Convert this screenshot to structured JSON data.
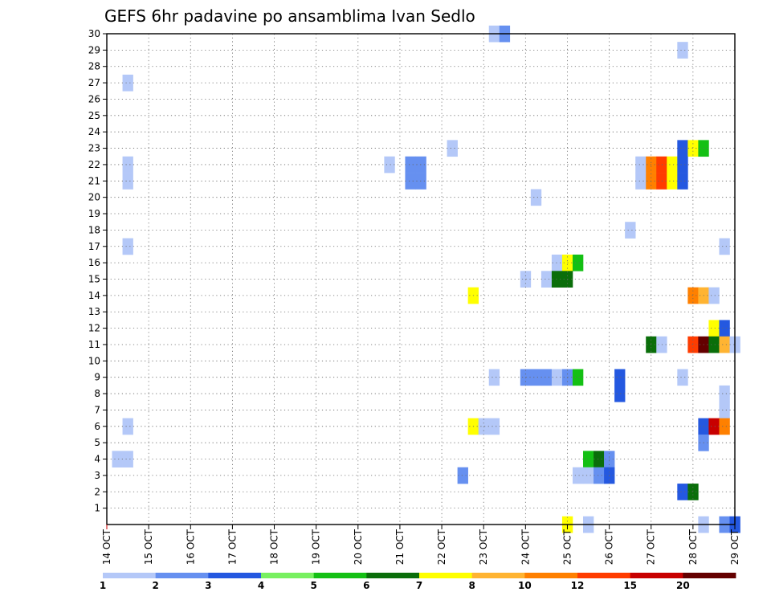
{
  "chart_data": {
    "type": "heatmap",
    "title": "GEFS 6hr padavine po ansamblima Ivan Sedlo",
    "x_ticks": [
      "14 OCT",
      "15 OCT",
      "16 OCT",
      "17 OCT",
      "18 OCT",
      "19 OCT",
      "20 OCT",
      "21 OCT",
      "22 OCT",
      "23 OCT",
      "24 OCT",
      "25 OCT",
      "26 OCT",
      "27 OCT",
      "28 OCT",
      "29 OCT"
    ],
    "x_unit": "days from 14 OCT (1 day = 4 six-hour steps)",
    "xlim": [
      0,
      15
    ],
    "y_ticks": [
      "1",
      "2",
      "3",
      "4",
      "5",
      "6",
      "7",
      "8",
      "9",
      "10",
      "11",
      "12",
      "13",
      "14",
      "15",
      "16",
      "17",
      "18",
      "19",
      "20",
      "21",
      "22",
      "23",
      "24",
      "25",
      "26",
      "27",
      "28",
      "29",
      "30"
    ],
    "ylim": [
      0,
      30
    ],
    "grid": true,
    "colorbar": {
      "labels": [
        "1",
        "2",
        "3",
        "4",
        "5",
        "6",
        "7",
        "8",
        "10",
        "12",
        "15",
        "20"
      ],
      "colors": [
        "#b4c8f8",
        "#6690f0",
        "#2458e0",
        "#78f060",
        "#14c014",
        "#0a6e0a",
        "#ffff00",
        "#ffb432",
        "#ff8000",
        "#ff3c00",
        "#c80000",
        "#640000"
      ]
    },
    "cells": [
      {
        "x": 9.25,
        "y": 30,
        "v": 1
      },
      {
        "x": 9.5,
        "y": 30,
        "v": 2
      },
      {
        "x": 13.75,
        "y": 29,
        "v": 1
      },
      {
        "x": 0.5,
        "y": 27,
        "v": 1
      },
      {
        "x": 8.25,
        "y": 23,
        "v": 1
      },
      {
        "x": 13.75,
        "y": 23,
        "v": 3
      },
      {
        "x": 14,
        "y": 23,
        "v": 7
      },
      {
        "x": 14.25,
        "y": 23,
        "v": 5
      },
      {
        "x": 0.5,
        "y": 22,
        "v": 1
      },
      {
        "x": 6.75,
        "y": 22,
        "v": 1
      },
      {
        "x": 7.25,
        "y": 22,
        "v": 2
      },
      {
        "x": 7.5,
        "y": 22,
        "v": 2
      },
      {
        "x": 12.75,
        "y": 22,
        "v": 1
      },
      {
        "x": 13,
        "y": 22,
        "v": 10
      },
      {
        "x": 13.25,
        "y": 22,
        "v": 12
      },
      {
        "x": 13.5,
        "y": 22,
        "v": 7
      },
      {
        "x": 13.75,
        "y": 22,
        "v": 3
      },
      {
        "x": 0.5,
        "y": 21,
        "v": 1
      },
      {
        "x": 7.25,
        "y": 21,
        "v": 2
      },
      {
        "x": 7.5,
        "y": 21,
        "v": 2
      },
      {
        "x": 12.75,
        "y": 21,
        "v": 1
      },
      {
        "x": 13,
        "y": 21,
        "v": 10
      },
      {
        "x": 13.25,
        "y": 21,
        "v": 12
      },
      {
        "x": 13.5,
        "y": 21,
        "v": 7
      },
      {
        "x": 13.75,
        "y": 21,
        "v": 3
      },
      {
        "x": 10.25,
        "y": 20,
        "v": 1
      },
      {
        "x": 12.5,
        "y": 18,
        "v": 1
      },
      {
        "x": 0.5,
        "y": 17,
        "v": 1
      },
      {
        "x": 14.75,
        "y": 17,
        "v": 1
      },
      {
        "x": 10.75,
        "y": 16,
        "v": 1
      },
      {
        "x": 11,
        "y": 16,
        "v": 7
      },
      {
        "x": 11.25,
        "y": 16,
        "v": 5
      },
      {
        "x": 10,
        "y": 15,
        "v": 1
      },
      {
        "x": 10.5,
        "y": 15,
        "v": 1
      },
      {
        "x": 10.75,
        "y": 15,
        "v": 6
      },
      {
        "x": 11,
        "y": 15,
        "v": 6
      },
      {
        "x": 8.75,
        "y": 14,
        "v": 7
      },
      {
        "x": 14,
        "y": 14,
        "v": 10
      },
      {
        "x": 14.25,
        "y": 14,
        "v": 8
      },
      {
        "x": 14.5,
        "y": 14,
        "v": 1
      },
      {
        "x": 14.5,
        "y": 12,
        "v": 7
      },
      {
        "x": 14.75,
        "y": 12,
        "v": 3
      },
      {
        "x": 13,
        "y": 11,
        "v": 6
      },
      {
        "x": 13.25,
        "y": 11,
        "v": 1
      },
      {
        "x": 14,
        "y": 11,
        "v": 12
      },
      {
        "x": 14.25,
        "y": 11,
        "v": 20
      },
      {
        "x": 14.5,
        "y": 11,
        "v": 6
      },
      {
        "x": 14.75,
        "y": 11,
        "v": 8
      },
      {
        "x": 15,
        "y": 11,
        "v": 1
      },
      {
        "x": 9.25,
        "y": 9,
        "v": 1
      },
      {
        "x": 10,
        "y": 9,
        "v": 2
      },
      {
        "x": 10.25,
        "y": 9,
        "v": 2
      },
      {
        "x": 10.5,
        "y": 9,
        "v": 2
      },
      {
        "x": 10.75,
        "y": 9,
        "v": 1
      },
      {
        "x": 11,
        "y": 9,
        "v": 2
      },
      {
        "x": 11.25,
        "y": 9,
        "v": 5
      },
      {
        "x": 12.25,
        "y": 9,
        "v": 3
      },
      {
        "x": 13.75,
        "y": 9,
        "v": 1
      },
      {
        "x": 12.25,
        "y": 8,
        "v": 3
      },
      {
        "x": 14.75,
        "y": 8,
        "v": 1
      },
      {
        "x": 14.75,
        "y": 7,
        "v": 1
      },
      {
        "x": 0.5,
        "y": 6,
        "v": 1
      },
      {
        "x": 8.75,
        "y": 6,
        "v": 7
      },
      {
        "x": 9,
        "y": 6,
        "v": 1
      },
      {
        "x": 9.25,
        "y": 6,
        "v": 1
      },
      {
        "x": 14.25,
        "y": 6,
        "v": 3
      },
      {
        "x": 14.5,
        "y": 6,
        "v": 15
      },
      {
        "x": 14.75,
        "y": 6,
        "v": 10
      },
      {
        "x": 14.25,
        "y": 5,
        "v": 2
      },
      {
        "x": 0.25,
        "y": 4,
        "v": 1
      },
      {
        "x": 0.5,
        "y": 4,
        "v": 1
      },
      {
        "x": 11.5,
        "y": 4,
        "v": 5
      },
      {
        "x": 11.75,
        "y": 4,
        "v": 6
      },
      {
        "x": 12,
        "y": 4,
        "v": 2
      },
      {
        "x": 8.5,
        "y": 3,
        "v": 2
      },
      {
        "x": 11.25,
        "y": 3,
        "v": 1
      },
      {
        "x": 11.5,
        "y": 3,
        "v": 1
      },
      {
        "x": 11.75,
        "y": 3,
        "v": 2
      },
      {
        "x": 12,
        "y": 3,
        "v": 3
      },
      {
        "x": 13.75,
        "y": 2,
        "v": 3
      },
      {
        "x": 14,
        "y": 2,
        "v": 6
      },
      {
        "x": 11,
        "y": 0,
        "v": 7
      },
      {
        "x": 11.5,
        "y": 0,
        "v": 1
      },
      {
        "x": 14.25,
        "y": 0,
        "v": 1
      },
      {
        "x": 14.75,
        "y": 0,
        "v": 2
      },
      {
        "x": 15,
        "y": 0,
        "v": 3
      }
    ]
  }
}
